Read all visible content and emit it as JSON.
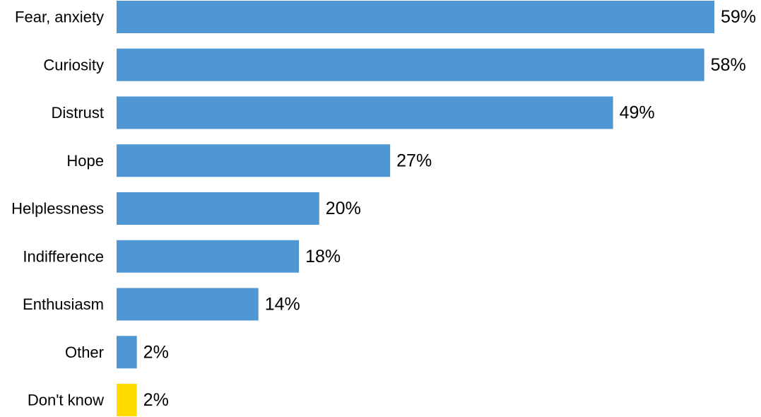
{
  "chart_data": {
    "type": "bar",
    "orientation": "horizontal",
    "categories": [
      "Fear, anxiety",
      "Curiosity",
      "Distrust",
      "Hope",
      "Helplessness",
      "Indifference",
      "Enthusiasm",
      "Other",
      "Don't know"
    ],
    "values": [
      59,
      58,
      49,
      27,
      20,
      18,
      14,
      2,
      2
    ],
    "value_labels": [
      "59%",
      "58%",
      "49%",
      "27%",
      "20%",
      "18%",
      "14%",
      "2%",
      "2%"
    ],
    "bar_colors": [
      "#4f97d3",
      "#4f97d3",
      "#4f97d3",
      "#4f97d3",
      "#4f97d3",
      "#4f97d3",
      "#4f97d3",
      "#4f97d3",
      "#ffdb00"
    ],
    "title": "",
    "xlabel": "",
    "ylabel": "",
    "xlim": [
      0,
      59
    ],
    "grid": false,
    "legend": "none"
  }
}
